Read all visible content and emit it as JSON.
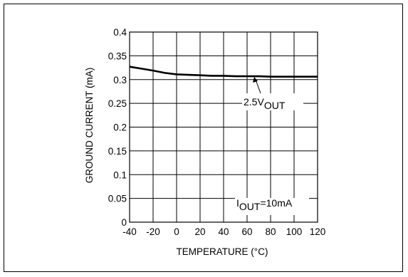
{
  "chart_data": {
    "type": "line",
    "xlabel": "TEMPERATURE (°C)",
    "ylabel": "GROUND CURRENT (mA)",
    "xlim": [
      -40,
      120
    ],
    "ylim": [
      0,
      0.4
    ],
    "x_ticks": [
      "-40",
      "-20",
      "0",
      "20",
      "40",
      "60",
      "80",
      "100",
      "120"
    ],
    "y_ticks": [
      "0",
      "0.05",
      "0.1",
      "0.15",
      "0.2",
      "0.25",
      "0.3",
      "0.35",
      "0.4"
    ],
    "grid": true,
    "series": [
      {
        "x": [
          -40,
          -30,
          -20,
          -10,
          0,
          10,
          20,
          30,
          40,
          50,
          60,
          70,
          80,
          90,
          100,
          110,
          120
        ],
        "y": [
          0.327,
          0.323,
          0.319,
          0.314,
          0.311,
          0.31,
          0.309,
          0.308,
          0.308,
          0.307,
          0.307,
          0.307,
          0.306,
          0.306,
          0.306,
          0.306,
          0.306
        ]
      }
    ],
    "annotations": [
      {
        "main": "2.5V",
        "sub": "OUT",
        "suffix": ""
      },
      {
        "main": "I",
        "sub": "OUT",
        "suffix": "=10mA"
      }
    ]
  }
}
